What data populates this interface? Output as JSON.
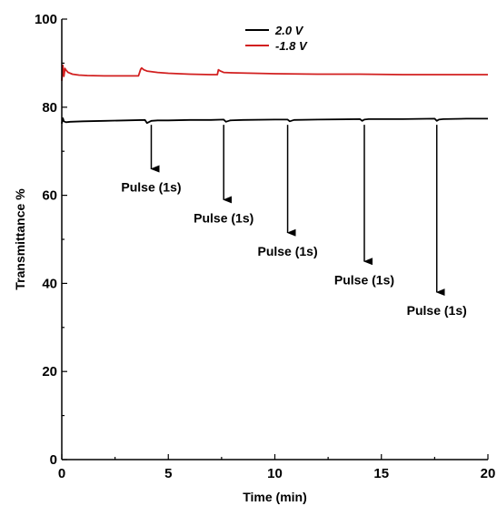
{
  "chart_data": {
    "type": "line",
    "xlabel": "Time (min)",
    "ylabel": "Transmittance %",
    "xlim": [
      0,
      20
    ],
    "ylim": [
      0,
      100
    ],
    "x_ticks": [
      0,
      5,
      10,
      15,
      20
    ],
    "y_ticks": [
      0,
      20,
      40,
      60,
      80,
      100
    ],
    "grid": false,
    "legend": "top-center",
    "series": [
      {
        "name": "2.0 V",
        "color": "#000000",
        "x": [
          0,
          0.05,
          0.1,
          0.2,
          0.4,
          1.0,
          2.0,
          3.0,
          3.9,
          4.0,
          4.2,
          4.5,
          5.0,
          6.0,
          7.0,
          7.6,
          7.7,
          7.9,
          8.5,
          10.0,
          10.6,
          10.7,
          10.9,
          12.0,
          14.0,
          14.1,
          14.2,
          14.4,
          16.0,
          17.5,
          17.6,
          17.7,
          17.9,
          19.0,
          20.0
        ],
        "y": [
          76.3,
          77.5,
          76.8,
          76.6,
          76.7,
          76.8,
          76.9,
          77.0,
          77.1,
          76.4,
          76.9,
          77.0,
          77.0,
          77.1,
          77.1,
          77.2,
          76.7,
          77.0,
          77.1,
          77.2,
          77.2,
          76.8,
          77.1,
          77.2,
          77.3,
          76.9,
          77.2,
          77.3,
          77.3,
          77.4,
          76.9,
          77.2,
          77.3,
          77.4,
          77.4
        ]
      },
      {
        "name": "-1.8 V",
        "color": "#d22020",
        "x": [
          0,
          0.05,
          0.1,
          0.15,
          0.2,
          0.3,
          0.5,
          0.8,
          1.2,
          2.0,
          3.0,
          3.6,
          3.7,
          3.75,
          3.85,
          4.0,
          4.5,
          5.0,
          6.0,
          7.0,
          7.3,
          7.35,
          7.45,
          7.6,
          8.0,
          9.0,
          10.0,
          12.0,
          14.0,
          16.0,
          18.0,
          20.0
        ],
        "y": [
          86.0,
          89.5,
          87.0,
          88.8,
          88.4,
          87.9,
          87.5,
          87.3,
          87.2,
          87.1,
          87.1,
          87.1,
          88.6,
          88.9,
          88.5,
          88.2,
          87.9,
          87.7,
          87.5,
          87.4,
          87.4,
          88.5,
          88.2,
          87.9,
          87.8,
          87.7,
          87.6,
          87.5,
          87.5,
          87.4,
          87.4,
          87.4
        ]
      }
    ],
    "annotations": [
      {
        "text": "Pulse (1s)",
        "x": 4.2,
        "y_start": 76.0,
        "y_end": 66.0,
        "label_y": 63.5
      },
      {
        "text": "Pulse (1s)",
        "x": 7.6,
        "y_start": 76.0,
        "y_end": 59.0,
        "label_y": 56.5
      },
      {
        "text": "Pulse (1s)",
        "x": 10.6,
        "y_start": 76.0,
        "y_end": 51.5,
        "label_y": 49.0
      },
      {
        "text": "Pulse (1s)",
        "x": 14.2,
        "y_start": 76.0,
        "y_end": 45.0,
        "label_y": 42.5
      },
      {
        "text": "Pulse (1s)",
        "x": 17.6,
        "y_start": 76.0,
        "y_end": 38.0,
        "label_y": 35.5
      }
    ]
  }
}
